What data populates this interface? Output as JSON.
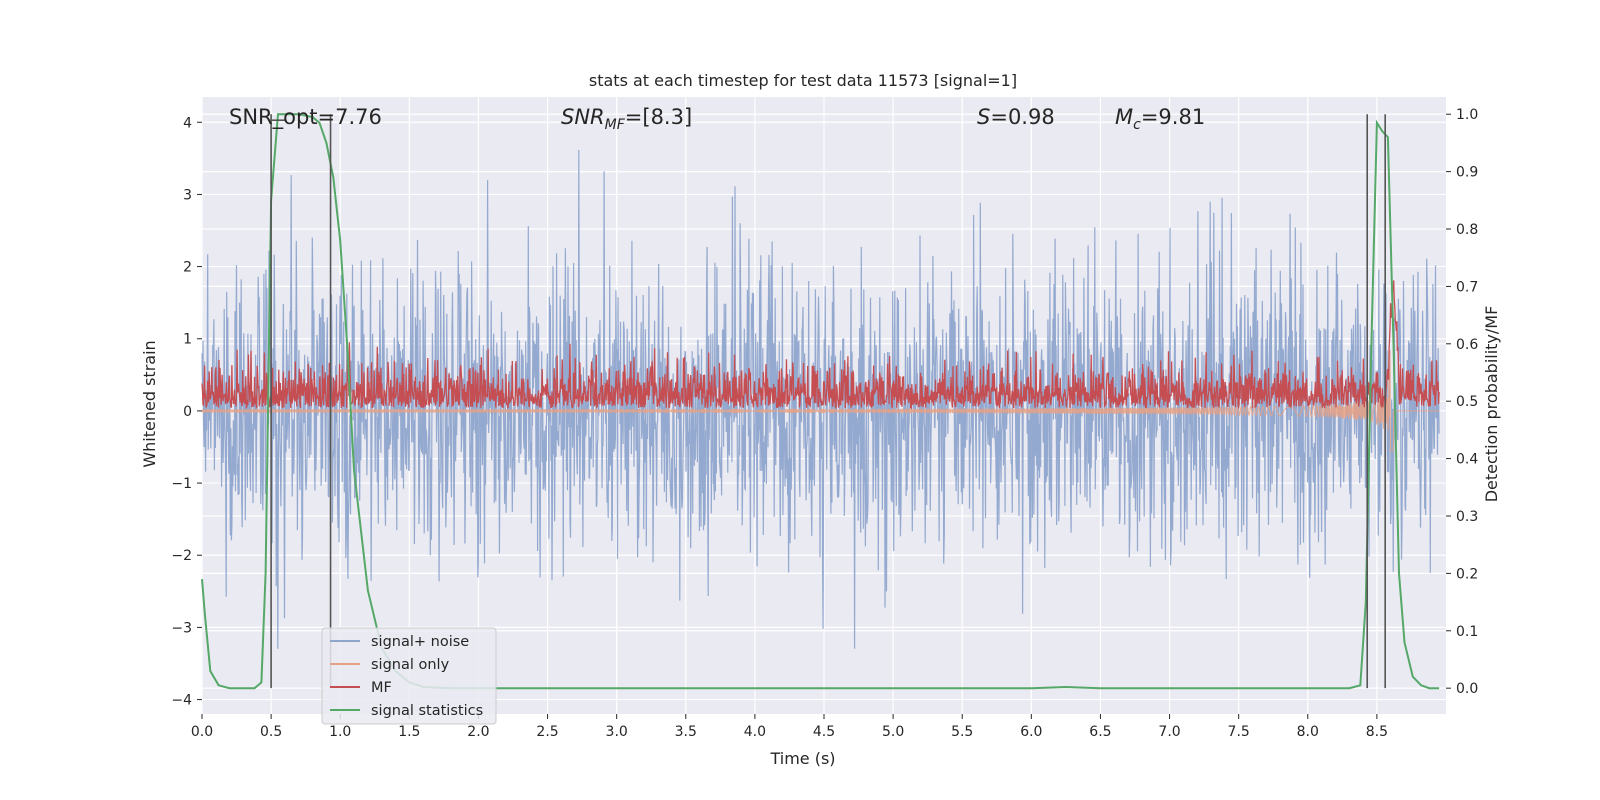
{
  "chart_data": {
    "type": "line",
    "title": "stats at each timestep for test data 11573 [signal=1]",
    "xlabel": "Time (s)",
    "ylabel_left": "Whitened strain",
    "ylabel_right": "Detection probability/MF",
    "xlim": [
      0.0,
      9.0
    ],
    "ylim_left": [
      -4.2,
      4.35
    ],
    "ylim_right": [
      -0.045,
      1.03
    ],
    "x_ticks": [
      0.0,
      0.5,
      1.0,
      1.5,
      2.0,
      2.5,
      3.0,
      3.5,
      4.0,
      4.5,
      5.0,
      5.5,
      6.0,
      6.5,
      7.0,
      7.5,
      8.0,
      8.5
    ],
    "x_tick_labels": [
      "0.0",
      "0.5",
      "1.0",
      "1.5",
      "2.0",
      "2.5",
      "3.0",
      "3.5",
      "4.0",
      "4.5",
      "5.0",
      "5.5",
      "6.0",
      "6.5",
      "7.0",
      "7.5",
      "8.0",
      "8.5"
    ],
    "y_left_ticks": [
      -4,
      -3,
      -2,
      -1,
      0,
      1,
      2,
      3,
      4
    ],
    "y_left_tick_labels": [
      "−4",
      "−3",
      "−2",
      "−1",
      "0",
      "1",
      "2",
      "3",
      "4"
    ],
    "y_right_ticks": [
      0.0,
      0.1,
      0.2,
      0.3,
      0.4,
      0.5,
      0.6,
      0.7,
      0.8,
      0.9,
      1.0
    ],
    "y_right_tick_labels": [
      "0.0",
      "0.1",
      "0.2",
      "0.3",
      "0.4",
      "0.5",
      "0.6",
      "0.7",
      "0.8",
      "0.9",
      "1.0"
    ],
    "annotations": {
      "snr_opt": "SNR_opt=7.76",
      "snr_mf_main": "SNR",
      "snr_mf_sub": "MF",
      "snr_mf_value": "=[8.3]",
      "s_var": "S",
      "s_value": "=0.98",
      "mc_var": "M",
      "mc_sub": "c",
      "mc_value": "=9.81"
    },
    "series": [
      {
        "name": "signal+ noise",
        "color": "#8fa5cc",
        "axis": "left",
        "kind": "noisy",
        "sigma": 1.0
      },
      {
        "name": "signal only",
        "color": "#e6a185",
        "axis": "left",
        "kind": "chirp",
        "t_merge": 8.6,
        "peak_amp": 1.35
      },
      {
        "name": "MF",
        "color": "#c44e52",
        "axis": "right",
        "kind": "mf",
        "baseline": 0.5,
        "jitter": 0.035
      },
      {
        "name": "signal statistics",
        "color": "#55a868",
        "axis": "right",
        "kind": "line",
        "x": [
          0.0,
          0.02,
          0.06,
          0.12,
          0.2,
          0.3,
          0.38,
          0.43,
          0.46,
          0.5,
          0.55,
          0.6,
          0.7,
          0.8,
          0.85,
          0.9,
          0.95,
          1.0,
          1.05,
          1.1,
          1.2,
          1.3,
          1.4,
          1.5,
          1.6,
          1.8,
          2.0,
          3.0,
          4.0,
          5.0,
          6.0,
          6.25,
          6.5,
          7.0,
          7.5,
          8.0,
          8.3,
          8.38,
          8.42,
          8.46,
          8.5,
          8.54,
          8.58,
          8.62,
          8.66,
          8.7,
          8.76,
          8.82,
          8.88,
          8.95
        ],
        "y": [
          0.19,
          0.13,
          0.03,
          0.005,
          0.0,
          0.0,
          0.0,
          0.01,
          0.2,
          0.85,
          1.0,
          1.0,
          1.0,
          0.995,
          0.985,
          0.95,
          0.89,
          0.78,
          0.6,
          0.38,
          0.17,
          0.07,
          0.03,
          0.01,
          0.002,
          0.0,
          0.0,
          0.0,
          0.0,
          0.0,
          0.0,
          0.002,
          0.0,
          0.0,
          0.0,
          0.0,
          0.0,
          0.005,
          0.15,
          0.6,
          0.985,
          0.97,
          0.96,
          0.6,
          0.2,
          0.08,
          0.02,
          0.005,
          0.0,
          0.0
        ]
      }
    ],
    "vertical_lines": [
      0.5,
      0.93,
      8.43,
      8.56
    ],
    "bracket_heights": [
      1.0,
      1.0
    ],
    "legend": {
      "placement": "lower-left",
      "entries": [
        {
          "label": "signal+ noise",
          "color": "#8fa5cc"
        },
        {
          "label": "signal only",
          "color": "#e6a185"
        },
        {
          "label": "MF",
          "color": "#c44e52"
        },
        {
          "label": "signal statistics",
          "color": "#55a868"
        }
      ]
    },
    "grid": true,
    "background": "#eaeaf2",
    "grid_color": "#ffffff"
  }
}
